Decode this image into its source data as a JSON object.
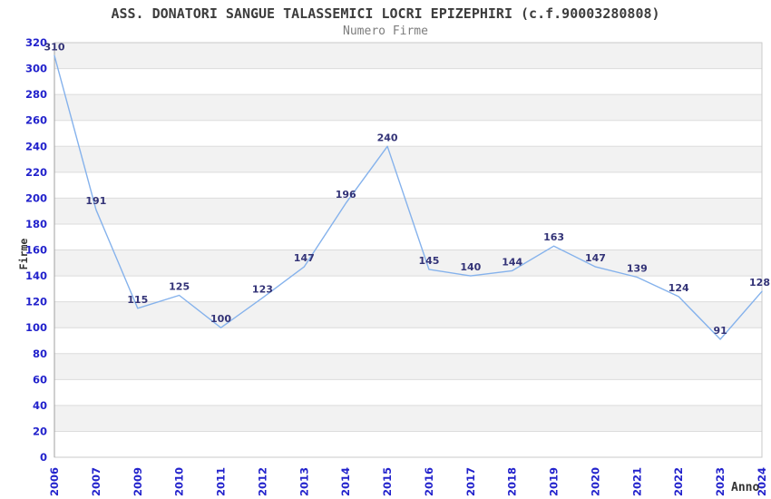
{
  "header": {
    "title": "ASS. DONATORI SANGUE TALASSEMICI LOCRI EPIZEPHIRI (c.f.90003280808)",
    "subtitle": "Numero Firme"
  },
  "chart_data": {
    "type": "line",
    "title": "ASS. DONATORI SANGUE TALASSEMICI LOCRI EPIZEPHIRI (c.f.90003280808)",
    "subtitle": "Numero Firme",
    "xlabel": "Anno",
    "ylabel": "Firme",
    "categories": [
      "2006",
      "2007",
      "2009",
      "2010",
      "2011",
      "2012",
      "2013",
      "2014",
      "2015",
      "2016",
      "2017",
      "2018",
      "2019",
      "2020",
      "2021",
      "2022",
      "2023",
      "2024"
    ],
    "values": [
      310,
      191,
      115,
      125,
      100,
      123,
      147,
      196,
      240,
      145,
      140,
      144,
      163,
      147,
      139,
      124,
      91,
      128
    ],
    "ylim": [
      0,
      320
    ],
    "ytick_step": 20,
    "ytick_labels": [
      "0",
      "20",
      "40",
      "60",
      "80",
      "100",
      "120",
      "140",
      "160",
      "180",
      "200",
      "220",
      "240",
      "260",
      "280",
      "300",
      "320"
    ],
    "grid": true,
    "band_fill": true,
    "legend": "none",
    "colors": {
      "line": "#85b2ec",
      "tick_label": "#2222cc",
      "data_label": "#333377",
      "band": "#f2f2f2",
      "grid": "#dcdcdc",
      "border": "#c9c9c9",
      "axis_line": "#a0a0a0",
      "title": "#3c3c3c",
      "subtitle": "#7d7d7d",
      "axis_title": "#333333",
      "background": "#ffffff"
    }
  }
}
